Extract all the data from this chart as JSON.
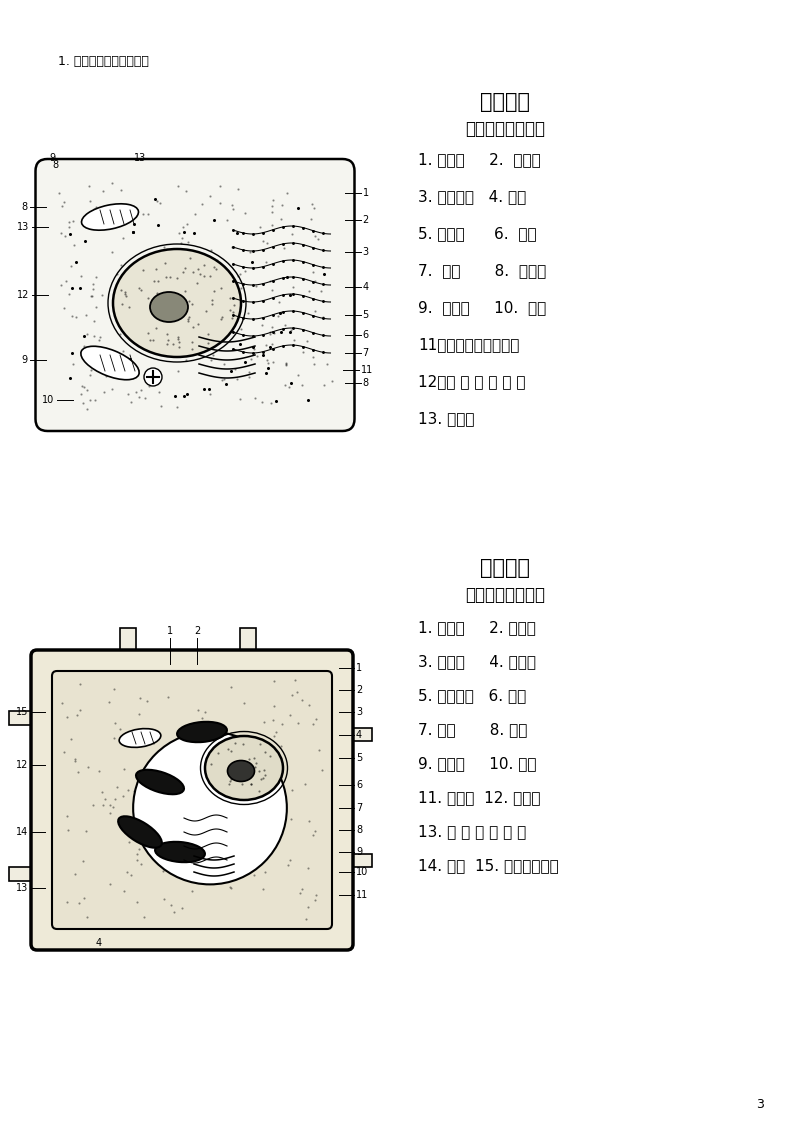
{
  "page_num": "3",
  "header_text": "1. 完成细胞各结构的名称",
  "animal_title": "动物细胞",
  "animal_subtitle": "亚显微结构模式图",
  "animal_labels": [
    "1. 细胞膜     2.  细胞质",
    "3. 高尔基体   4. 核液",
    "5. 染色质      6.  核仁",
    "7.  核膜       8.  内质网",
    "9.  线粒体     10.  核孔",
    "11．内质网上的核糖体",
    "12．游 离 的 核 糖 体",
    "13. 中心体"
  ],
  "plant_title": "植物细胞",
  "plant_subtitle": "亚显微结构模式图",
  "plant_labels": [
    "1. 细胞膜     2. 细胞壁",
    "3. 细胞质     4. 叶绿体",
    "5. 高尔基体   6. 核仁",
    "7. 核液       8. 核膜",
    "9. 染色质     10. 核孔",
    "11. 线粒体  12. 内质网",
    "13. 游 离 的 核 糖 体",
    "14. 液泡  15. 内质网核糖体"
  ],
  "bg_color": "#ffffff",
  "text_color": "#000000",
  "font_size_title": 15,
  "font_size_subtitle": 12,
  "font_size_label": 11,
  "font_size_header": 9,
  "font_size_page": 9
}
